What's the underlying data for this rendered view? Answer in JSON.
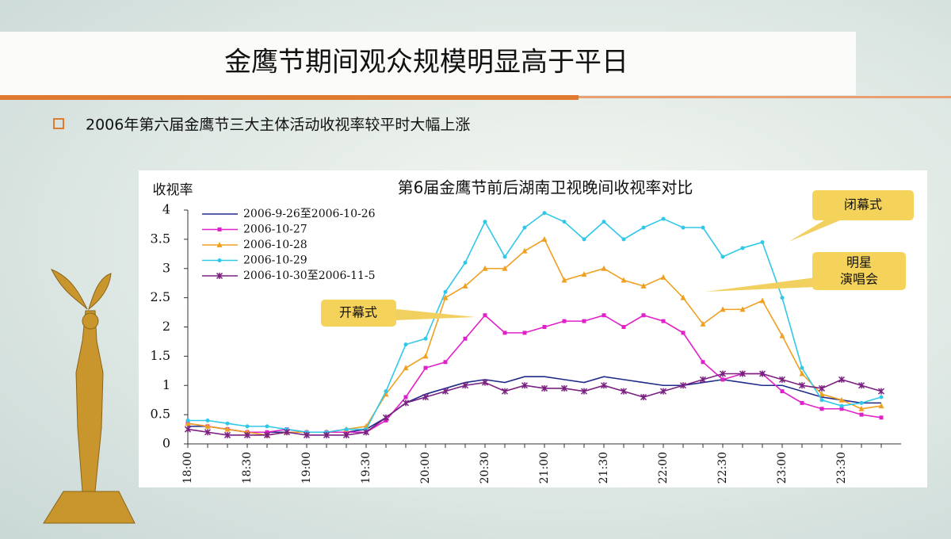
{
  "slide": {
    "title": "金鹰节期间观众规模明显高于平日",
    "bullet": "2006年第六届金鹰节三大主体活动收视率较平时大幅上涨"
  },
  "annotations": [
    [
      "闭幕式"
    ],
    [
      "明星",
      "演唱会"
    ],
    [
      "开幕式"
    ]
  ],
  "chart_data": {
    "type": "line",
    "title": "第6届金鹰节前后湖南卫视晚间收视率对比",
    "y_label": "收视率",
    "categories": [
      "18:00",
      null,
      null,
      "18:30",
      null,
      null,
      "19:00",
      null,
      null,
      "19:30",
      null,
      null,
      "20:00",
      null,
      null,
      "20:30",
      null,
      null,
      "21:00",
      null,
      null,
      "21:30",
      null,
      null,
      "22:00",
      null,
      null,
      "22:30",
      null,
      null,
      "23:00",
      null,
      null,
      "23:30",
      null,
      null
    ],
    "ylim": [
      0,
      4
    ],
    "yticks": [
      0,
      0.5,
      1,
      1.5,
      2,
      2.5,
      3,
      3.5,
      4
    ],
    "grid": false,
    "series": [
      {
        "name": "2006-9-26至2006-10-26",
        "color": "#1f2a8a",
        "marker": "none",
        "values": [
          0.3,
          0.3,
          0.25,
          0.2,
          0.2,
          0.2,
          0.2,
          0.2,
          0.2,
          0.25,
          0.45,
          0.7,
          0.85,
          0.95,
          1.05,
          1.1,
          1.05,
          1.15,
          1.15,
          1.1,
          1.05,
          1.15,
          1.1,
          1.05,
          1.0,
          1.0,
          1.05,
          1.1,
          1.05,
          1.0,
          1.0,
          0.9,
          0.8,
          0.75,
          0.7,
          0.7
        ]
      },
      {
        "name": "2006-10-27",
        "color": "#e020c8",
        "marker": "square",
        "values": [
          0.35,
          0.3,
          0.25,
          0.2,
          0.2,
          0.25,
          0.2,
          0.2,
          0.2,
          0.2,
          0.4,
          0.8,
          1.3,
          1.4,
          1.8,
          2.2,
          1.9,
          1.9,
          2.0,
          2.1,
          2.1,
          2.2,
          2.0,
          2.2,
          2.1,
          1.9,
          1.4,
          1.1,
          1.2,
          1.2,
          0.9,
          0.7,
          0.6,
          0.6,
          0.5,
          0.45
        ]
      },
      {
        "name": "2006-10-28",
        "color": "#f0a020",
        "marker": "triangle",
        "values": [
          0.35,
          0.3,
          0.25,
          0.2,
          0.15,
          0.2,
          0.2,
          0.2,
          0.25,
          0.3,
          0.85,
          1.3,
          1.5,
          2.5,
          2.7,
          3.0,
          3.0,
          3.3,
          3.5,
          2.8,
          2.9,
          3.0,
          2.8,
          2.7,
          2.85,
          2.5,
          2.05,
          2.3,
          2.3,
          2.45,
          1.85,
          1.2,
          0.85,
          0.75,
          0.6,
          0.65
        ]
      },
      {
        "name": "2006-10-29",
        "color": "#30c8e8",
        "marker": "circle",
        "values": [
          0.4,
          0.4,
          0.35,
          0.3,
          0.3,
          0.25,
          0.2,
          0.2,
          0.25,
          0.25,
          0.9,
          1.7,
          1.8,
          2.6,
          3.1,
          3.8,
          3.2,
          3.7,
          3.95,
          3.8,
          3.5,
          3.8,
          3.5,
          3.7,
          3.85,
          3.7,
          3.7,
          3.2,
          3.35,
          3.45,
          2.5,
          1.3,
          0.75,
          0.65,
          0.7,
          0.8
        ]
      },
      {
        "name": "2006-10-30至2006-11-5",
        "color": "#7a2080",
        "marker": "x",
        "values": [
          0.25,
          0.2,
          0.15,
          0.15,
          0.15,
          0.2,
          0.15,
          0.15,
          0.15,
          0.2,
          0.45,
          0.7,
          0.8,
          0.9,
          1.0,
          1.05,
          0.9,
          1.0,
          0.95,
          0.95,
          0.9,
          1.0,
          0.9,
          0.8,
          0.9,
          1.0,
          1.1,
          1.2,
          1.2,
          1.2,
          1.1,
          1.0,
          0.95,
          1.1,
          1.0,
          0.9
        ]
      }
    ]
  }
}
